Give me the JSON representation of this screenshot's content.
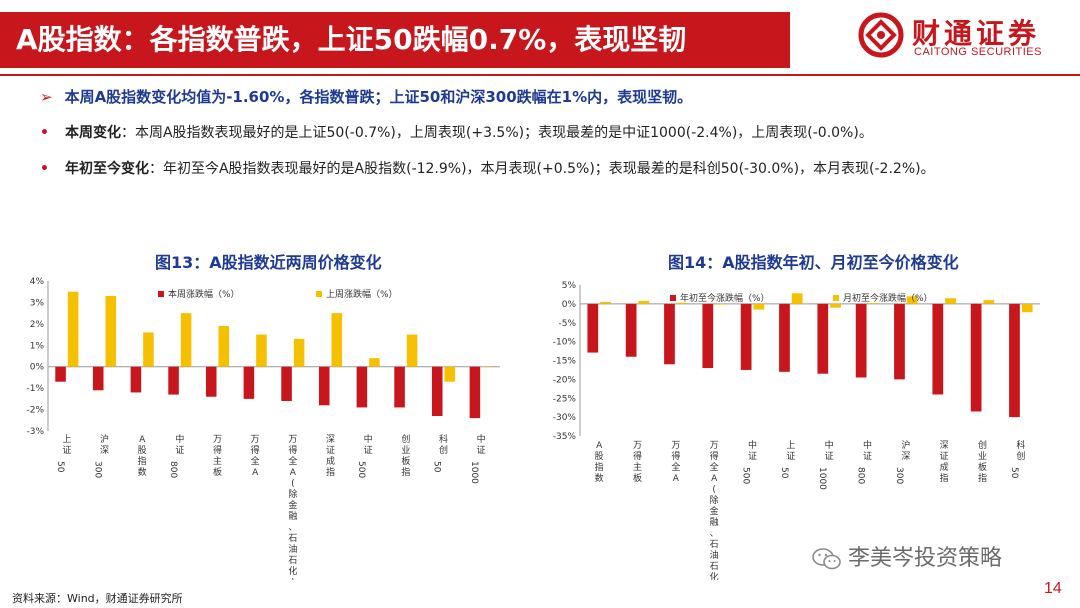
{
  "header": {
    "title": "A股指数：各指数普跌，上证50跌幅0.7%，表现坚韧",
    "logo_cn": "财通证券",
    "logo_en": "CAITONG SECURITIES"
  },
  "bullets": {
    "summary": "本周A股指数变化均值为-1.60%，各指数普跌；上证50和沪深300跌幅在1%内，表现坚韧。",
    "weekly_label": "本周变化",
    "weekly_text": "：本周A股指数表现最好的是上证50(-0.7%)，上周表现(+3.5%)；表现最差的是中证1000(-2.4%)，上周表现(-0.0%)。",
    "ytd_label": "年初至今变化",
    "ytd_text": "：年初至今A股指数表现最好的是A股指数(-12.9%)，本月表现(+0.5%)；表现最差的是科创50(-30.0%)，本月表现(-2.2%)。"
  },
  "chart_data": [
    {
      "type": "bar",
      "title": "图13：A股指数近两周价格变化",
      "categories": [
        "上证50",
        "沪深300",
        "A股指数",
        "中证800",
        "万得主板",
        "万得全A",
        "万得全A(除金融、石油石化)",
        "深证成指",
        "中证500",
        "创业板指",
        "科创50",
        "中证1000"
      ],
      "series": [
        {
          "name": "本周涨跌幅（%）",
          "color": "#c8161d",
          "values": [
            -0.7,
            -1.1,
            -1.2,
            -1.3,
            -1.4,
            -1.5,
            -1.6,
            -1.8,
            -1.9,
            -1.9,
            -2.3,
            -2.4
          ]
        },
        {
          "name": "上周涨跌幅（%）",
          "color": "#f5c000",
          "values": [
            3.5,
            3.3,
            1.6,
            2.5,
            1.9,
            1.5,
            1.3,
            2.5,
            0.4,
            1.5,
            -0.7,
            0.0
          ]
        }
      ],
      "ylim": [
        -3,
        4
      ],
      "yticks": [
        "4%",
        "3%",
        "2%",
        "1%",
        "0%",
        "-1%",
        "-2%",
        "-3%"
      ],
      "legend": "top"
    },
    {
      "type": "bar",
      "title": "图14：A股指数年初、月初至今价格变化",
      "categories": [
        "A股指数",
        "万得主板",
        "万得全A",
        "万得全A(除金融、石油石化)",
        "中证500",
        "上证50",
        "中证1000",
        "中证800",
        "沪深300",
        "深证成指",
        "创业板指",
        "科创50"
      ],
      "series": [
        {
          "name": "年初至今涨跌幅（%）",
          "color": "#c8161d",
          "values": [
            -12.9,
            -14.0,
            -16.0,
            -17.0,
            -17.5,
            -18.0,
            -18.5,
            -19.5,
            -20.0,
            -24.0,
            -28.5,
            -30.0
          ]
        },
        {
          "name": "月初至今涨跌幅（%）",
          "color": "#f5c000",
          "values": [
            0.5,
            0.8,
            0.3,
            -0.2,
            -1.5,
            2.8,
            -1.0,
            0.2,
            2.0,
            1.5,
            1.0,
            -2.2
          ]
        }
      ],
      "ylim": [
        -35,
        5
      ],
      "yticks": [
        "5%",
        "0%",
        "-5%",
        "-10%",
        "-15%",
        "-20%",
        "-25%",
        "-30%",
        "-35%"
      ],
      "legend": "top"
    }
  ],
  "footer": {
    "source": "资料来源：Wind，财通证券研究所",
    "watermark": "李美岑投资策略",
    "page_number": "14"
  },
  "colors": {
    "brand_red": "#c8161d",
    "title_blue": "#1f3a93",
    "bar_gold": "#f5c000"
  }
}
